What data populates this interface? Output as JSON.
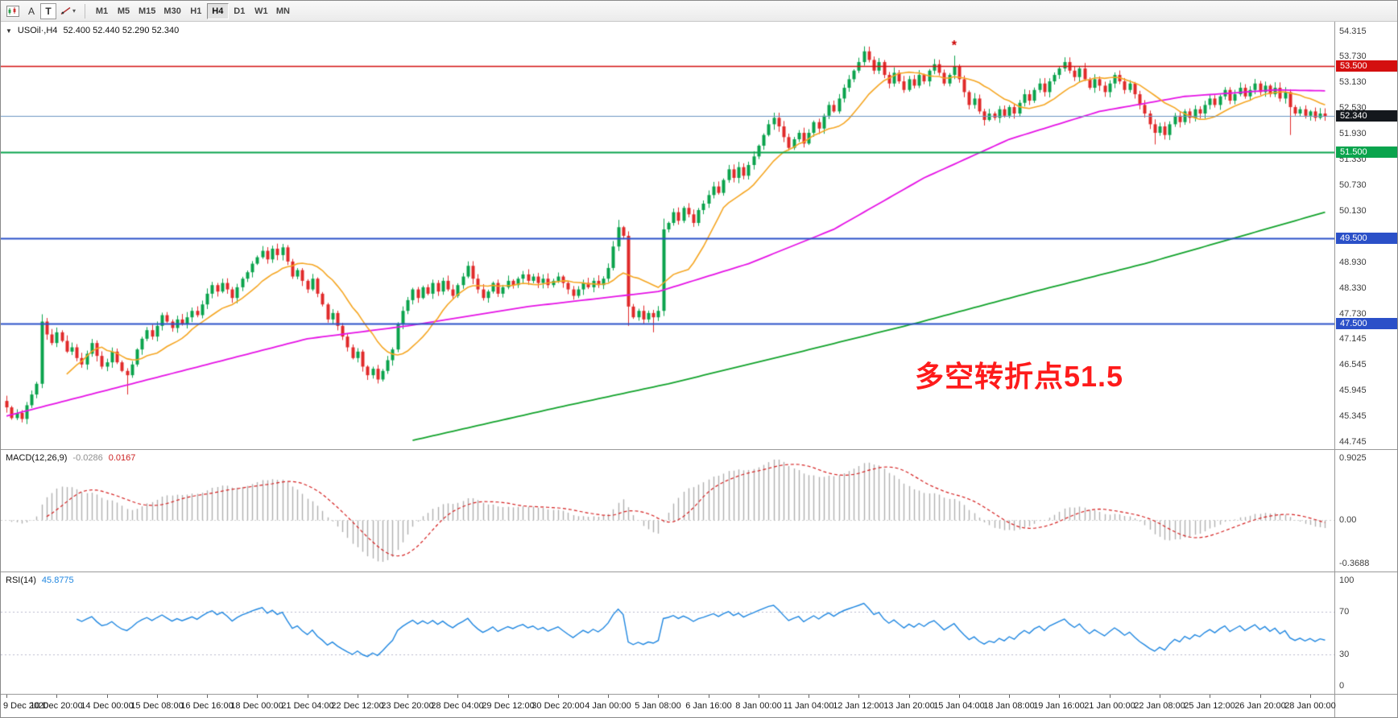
{
  "toolbar": {
    "tool_a_label": "A",
    "tool_t_label": "T",
    "timeframes": [
      "M1",
      "M5",
      "M15",
      "M30",
      "H1",
      "H4",
      "D1",
      "W1",
      "MN"
    ],
    "selected_timeframe": "H4"
  },
  "main_chart": {
    "title": "USOil·,H4",
    "ohlc_values": "52.400 52.440 52.290 52.340",
    "price_axis_labels": [
      "54.315",
      "53.730",
      "53.130",
      "52.530",
      "51.930",
      "51.330",
      "50.730",
      "50.130",
      "49.530",
      "48.930",
      "48.330",
      "47.730",
      "47.145",
      "46.545",
      "45.945",
      "45.345",
      "44.745"
    ],
    "annotation": {
      "text": "多空转折点51.5",
      "color": "#fe1b1b"
    },
    "marker": {
      "char": "*",
      "color": "#cc0000",
      "index": 189,
      "price": 53.88
    },
    "current_price": {
      "value": 52.34,
      "label": "52.340",
      "line_color": "#6b94c0",
      "badge_color": "#14181d"
    },
    "hlines": [
      {
        "price": 53.5,
        "label": "53.500",
        "color": "#d40f0f",
        "width": 1.4
      },
      {
        "price": 51.5,
        "label": "51.500",
        "color": "#0aa44d",
        "width": 2
      },
      {
        "price": 49.5,
        "label": "49.500",
        "color": "#2b50c8",
        "width": 2
      },
      {
        "price": 47.5,
        "label": "47.500",
        "color": "#2b50c8",
        "width": 2
      }
    ]
  },
  "macd_panel": {
    "name": "MACD(12,26,9)",
    "value_main": "-0.0286",
    "value_signal": "0.0167",
    "axis_top": "0.9025",
    "axis_zero": "0.00",
    "axis_bottom": "-0.3688",
    "histogram_color": "#b0b0b0",
    "signal_color": "#d42020"
  },
  "rsi_panel": {
    "name": "RSI(14)",
    "value": "45.8775",
    "axis": [
      "100",
      "70",
      "30",
      "0"
    ],
    "levels": [
      70,
      30
    ],
    "line_color": "#1e86e0"
  },
  "time_axis": {
    "bars_per_label": 10,
    "labels": [
      "9 Dec 2020",
      "10 Dec 20:00",
      "14 Dec 00:00",
      "15 Dec 08:00",
      "16 Dec 16:00",
      "18 Dec 00:00",
      "21 Dec 04:00",
      "22 Dec 12:00",
      "23 Dec 20:00",
      "28 Dec 04:00",
      "29 Dec 12:00",
      "30 Dec 20:00",
      "4 Jan 00:00",
      "5 Jan 08:00",
      "6 Jan 16:00",
      "8 Jan 00:00",
      "11 Jan 04:00",
      "12 Jan 12:00",
      "13 Jan 20:00",
      "15 Jan 04:00",
      "18 Jan 08:00",
      "19 Jan 16:00",
      "21 Jan 00:00",
      "22 Jan 08:00",
      "25 Jan 12:00",
      "26 Jan 20:00",
      "28 Jan 00:00"
    ]
  },
  "chart_data": {
    "type": "candlestick",
    "symbol": "USOil",
    "timeframe": "H4",
    "ylim": [
      44.745,
      54.315
    ],
    "first_open": 45.7,
    "up_color": "#0aa34c",
    "down_color": "#e02a2a",
    "closes": [
      45.55,
      45.3,
      45.42,
      45.28,
      45.6,
      45.85,
      46.1,
      47.55,
      47.25,
      47.05,
      47.3,
      47.1,
      46.85,
      46.95,
      46.7,
      46.55,
      46.8,
      47.05,
      46.75,
      46.5,
      46.6,
      46.85,
      46.6,
      46.4,
      46.3,
      46.55,
      46.9,
      47.15,
      47.35,
      47.2,
      47.45,
      47.7,
      47.55,
      47.4,
      47.6,
      47.5,
      47.65,
      47.8,
      47.7,
      47.95,
      48.2,
      48.4,
      48.25,
      48.45,
      48.3,
      48.1,
      48.35,
      48.55,
      48.7,
      48.9,
      49.05,
      49.2,
      49.0,
      49.25,
      49.1,
      49.28,
      48.95,
      48.6,
      48.75,
      48.5,
      48.3,
      48.55,
      48.2,
      47.95,
      47.6,
      47.75,
      47.45,
      47.2,
      46.95,
      46.7,
      46.85,
      46.5,
      46.3,
      46.45,
      46.2,
      46.4,
      46.65,
      46.9,
      47.5,
      47.8,
      48.05,
      48.3,
      48.1,
      48.35,
      48.2,
      48.45,
      48.25,
      48.5,
      48.3,
      48.15,
      48.4,
      48.6,
      48.85,
      48.55,
      48.3,
      48.1,
      48.25,
      48.45,
      48.2,
      48.35,
      48.5,
      48.4,
      48.55,
      48.65,
      48.5,
      48.6,
      48.45,
      48.55,
      48.4,
      48.5,
      48.6,
      48.45,
      48.3,
      48.15,
      48.3,
      48.45,
      48.35,
      48.5,
      48.4,
      48.55,
      48.8,
      49.3,
      49.75,
      49.55,
      47.9,
      47.65,
      47.8,
      47.6,
      47.75,
      47.65,
      47.8,
      49.7,
      49.85,
      50.1,
      49.9,
      50.2,
      50.05,
      49.85,
      50.15,
      50.3,
      50.5,
      50.7,
      50.55,
      50.85,
      51.1,
      50.9,
      51.15,
      50.95,
      51.2,
      51.4,
      51.65,
      51.9,
      52.15,
      52.3,
      52.1,
      51.85,
      51.6,
      51.8,
      51.95,
      51.7,
      51.95,
      52.2,
      52.05,
      52.35,
      52.6,
      52.45,
      52.75,
      53.0,
      53.2,
      53.4,
      53.6,
      53.85,
      53.65,
      53.4,
      53.6,
      53.3,
      53.1,
      53.35,
      53.15,
      52.95,
      53.2,
      53.05,
      53.3,
      53.15,
      53.4,
      53.55,
      53.35,
      53.1,
      53.3,
      53.5,
      53.2,
      52.9,
      52.6,
      52.75,
      52.45,
      52.25,
      52.4,
      52.3,
      52.5,
      52.35,
      52.55,
      52.4,
      52.65,
      52.85,
      52.7,
      52.95,
      53.1,
      52.9,
      53.15,
      53.3,
      53.45,
      53.6,
      53.4,
      53.25,
      53.45,
      53.2,
      53.0,
      53.2,
      53.05,
      52.9,
      53.1,
      53.3,
      53.15,
      52.95,
      53.1,
      52.85,
      52.6,
      52.4,
      52.15,
      51.95,
      52.1,
      51.9,
      52.15,
      52.35,
      52.2,
      52.45,
      52.3,
      52.5,
      52.4,
      52.6,
      52.75,
      52.6,
      52.8,
      52.95,
      52.7,
      52.85,
      53.0,
      52.8,
      52.95,
      53.1,
      52.9,
      53.05,
      52.85,
      53.0,
      52.75,
      52.9,
      52.55,
      52.4,
      52.5,
      52.35,
      52.45,
      52.3,
      52.4,
      52.34
    ],
    "wick_overrides": {
      "7": [
        47.72,
        null
      ],
      "24": [
        null,
        45.85
      ],
      "55": [
        49.36,
        null
      ],
      "122": [
        49.92,
        null
      ],
      "124": [
        null,
        47.45
      ],
      "129": [
        null,
        47.3
      ],
      "131": [
        49.95,
        47.68
      ],
      "153": [
        52.42,
        null
      ],
      "171": [
        53.96,
        null
      ],
      "189": [
        53.75,
        null
      ],
      "195": [
        null,
        52.12
      ],
      "211": [
        53.7,
        null
      ],
      "229": [
        null,
        51.68
      ],
      "256": [
        null,
        51.9
      ],
      "263": [
        52.44,
        52.29
      ]
    },
    "ma_fast": {
      "period": 13,
      "color": "#f5a623"
    },
    "ma_medium": {
      "color": "#e512e5",
      "idx": [
        0,
        25,
        60,
        80,
        104,
        130,
        148,
        165,
        183,
        200,
        218,
        235,
        253,
        263
      ],
      "price": [
        45.35,
        46.1,
        47.15,
        47.45,
        47.9,
        48.25,
        48.9,
        49.7,
        50.9,
        51.8,
        52.45,
        52.8,
        52.95,
        52.93
      ]
    },
    "ma_slow": {
      "color": "#11a22b",
      "idx": [
        81,
        110,
        132,
        155,
        181,
        205,
        227,
        245,
        263
      ],
      "price": [
        44.78,
        45.55,
        46.1,
        46.75,
        47.5,
        48.25,
        48.9,
        49.5,
        50.1
      ]
    },
    "macd": {
      "fast": 12,
      "slow": 26,
      "signal_period": 9
    },
    "rsi": {
      "period": 14
    }
  }
}
